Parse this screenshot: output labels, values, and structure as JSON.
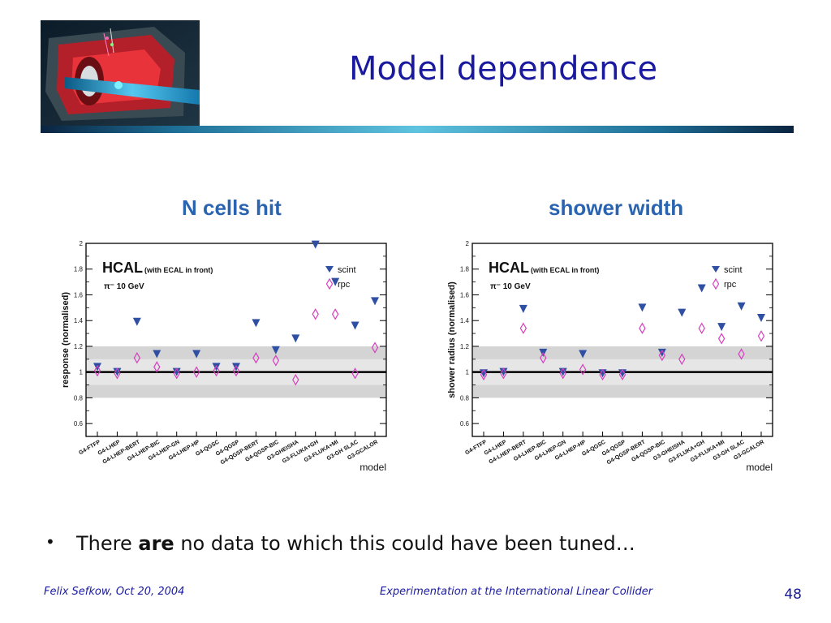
{
  "slide": {
    "title": "Model dependence",
    "bullet": {
      "pre": "There ",
      "bold": "are",
      "post": " no data to which this could have been tuned…"
    },
    "footer": {
      "left": "Felix Sefkow, Oct 20, 2004",
      "center": "Experimentation at the International Linear Collider",
      "page": "48"
    }
  },
  "colors": {
    "title": "#1a1aa0",
    "chart_title": "#2a64b0",
    "scint": "#2f4fa3",
    "rpc": "#d63fbe",
    "band_outer": "#d4d4d4",
    "band_inner": "#e6e6e6"
  },
  "chart_data": [
    {
      "type": "scatter",
      "title": "N cells hit",
      "ylabel": "response (normalised)",
      "xlabel": "model",
      "legend_title": "HCAL",
      "legend_subtitle": "(with ECAL in front)",
      "legend_energy": "π⁻ 10 GeV",
      "ylim": [
        0.5,
        2.0
      ],
      "y_ticks": [
        "0.6",
        "0.8",
        "1",
        "1.2",
        "1.4",
        "1.6",
        "1.8",
        "2"
      ],
      "y_tick_values": [
        0.6,
        0.8,
        1.0,
        1.2,
        1.4,
        1.6,
        1.8,
        2.0
      ],
      "bands": [
        [
          0.8,
          1.2
        ],
        [
          0.9,
          1.1
        ]
      ],
      "reference_line": 1.0,
      "legend_location": "top-right",
      "categories": [
        "G4-FTFP",
        "G4-LHEP",
        "G4-LHEP-BERT",
        "G4-LHEP-BIC",
        "G4-LHEP-GN",
        "G4-LHEP-HP",
        "G4-QGSC",
        "G4-QGSP",
        "G4-QGSP-BERT",
        "G4-QGSP-BIC",
        "G3-GHEISHA",
        "G3-FLUKA+GH",
        "G3-FLUKA+MI",
        "G3-GH SLAC",
        "G3-GCALOR"
      ],
      "series": [
        {
          "name": "scint",
          "marker": "triangle-down",
          "values": [
            1.04,
            1.0,
            1.39,
            1.14,
            1.0,
            1.14,
            1.04,
            1.04,
            1.38,
            1.17,
            1.26,
            1.99,
            1.7,
            1.36,
            1.55
          ]
        },
        {
          "name": "rpc",
          "marker": "diamond-open",
          "values": [
            1.01,
            0.99,
            1.11,
            1.04,
            0.99,
            1.0,
            1.01,
            1.01,
            1.11,
            1.09,
            0.94,
            1.45,
            1.45,
            0.99,
            1.19
          ]
        }
      ]
    },
    {
      "type": "scatter",
      "title": "shower width",
      "ylabel": "shower radius (normalised)",
      "xlabel": "model",
      "legend_title": "HCAL",
      "legend_subtitle": "(with ECAL in front)",
      "legend_energy": "π⁻ 10 GeV",
      "ylim": [
        0.5,
        2.0
      ],
      "y_ticks": [
        "0.6",
        "0.8",
        "1",
        "1.2",
        "1.4",
        "1.6",
        "1.8",
        "2"
      ],
      "y_tick_values": [
        0.6,
        0.8,
        1.0,
        1.2,
        1.4,
        1.6,
        1.8,
        2.0
      ],
      "bands": [
        [
          0.8,
          1.2
        ],
        [
          0.9,
          1.1
        ]
      ],
      "reference_line": 1.0,
      "legend_location": "top-right",
      "categories": [
        "G4-FTFP",
        "G4-LHEP",
        "G4-LHEP-BERT",
        "G4-LHEP-BIC",
        "G4-LHEP-GN",
        "G4-LHEP-HP",
        "G4-QGSC",
        "G4-QGSP",
        "G4-QGSP-BERT",
        "G4-QGSP-BIC",
        "G3-GHEISHA",
        "G3-FLUKA+GH",
        "G3-FLUKA+MI",
        "G3-GH SLAC",
        "G3-GCALOR"
      ],
      "series": [
        {
          "name": "scint",
          "marker": "triangle-down",
          "values": [
            0.99,
            1.0,
            1.49,
            1.15,
            1.0,
            1.14,
            0.99,
            0.99,
            1.5,
            1.15,
            1.46,
            1.65,
            1.35,
            1.51,
            1.42
          ]
        },
        {
          "name": "rpc",
          "marker": "diamond-open",
          "values": [
            0.98,
            0.99,
            1.34,
            1.11,
            0.99,
            1.02,
            0.98,
            0.98,
            1.34,
            1.13,
            1.1,
            1.34,
            1.26,
            1.14,
            1.28
          ]
        }
      ]
    }
  ]
}
